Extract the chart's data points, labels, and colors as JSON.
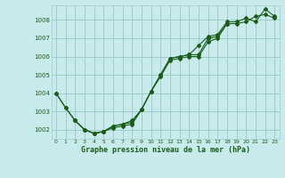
{
  "title": "Graphe pression niveau de la mer (hPa)",
  "bg_color": "#c8eaea",
  "grid_color": "#a0cccc",
  "line_color": "#1a5c1a",
  "xlim": [
    -0.5,
    23.5
  ],
  "ylim": [
    1001.5,
    1008.8
  ],
  "yticks": [
    1002,
    1003,
    1004,
    1005,
    1006,
    1007,
    1008
  ],
  "xticks": [
    0,
    1,
    2,
    3,
    4,
    5,
    6,
    7,
    8,
    9,
    10,
    11,
    12,
    13,
    14,
    15,
    16,
    17,
    18,
    19,
    20,
    21,
    22,
    23
  ],
  "line1_x": [
    0,
    1,
    2,
    3,
    4,
    5,
    6,
    7,
    8,
    9,
    10,
    11,
    12,
    13,
    14,
    15,
    16,
    17,
    18
  ],
  "line1_y": [
    1004.0,
    1003.2,
    1002.5,
    1002.0,
    1001.8,
    1001.9,
    1002.1,
    1002.2,
    1002.3,
    1003.1,
    1004.1,
    1004.9,
    1005.8,
    1005.9,
    1006.0,
    1006.0,
    1006.8,
    1007.0,
    1007.8
  ],
  "line2_x": [
    0,
    1,
    2,
    3,
    4,
    5,
    6,
    7,
    8,
    9,
    10,
    11,
    12,
    13,
    14,
    15,
    16,
    17,
    18,
    19,
    20,
    21,
    22,
    23
  ],
  "line2_y": [
    1004.0,
    1003.2,
    1002.5,
    1002.0,
    1001.8,
    1001.9,
    1002.2,
    1002.3,
    1002.4,
    1003.1,
    1004.1,
    1005.0,
    1005.9,
    1006.0,
    1006.1,
    1006.1,
    1007.0,
    1007.1,
    1007.8,
    1007.8,
    1007.9,
    1008.2,
    1008.3,
    1008.1
  ],
  "line3_x": [
    2,
    3,
    4,
    5,
    6,
    7,
    8,
    9,
    10,
    11,
    12,
    13,
    14,
    15,
    16,
    17,
    18,
    19,
    20,
    21,
    22,
    23
  ],
  "line3_y": [
    1002.5,
    1002.0,
    1001.8,
    1001.9,
    1002.2,
    1002.3,
    1002.5,
    1003.1,
    1004.1,
    1005.0,
    1005.9,
    1006.0,
    1006.1,
    1006.6,
    1007.1,
    1007.2,
    1007.9,
    1007.9,
    1008.1,
    1007.9,
    1008.6,
    1008.2
  ]
}
